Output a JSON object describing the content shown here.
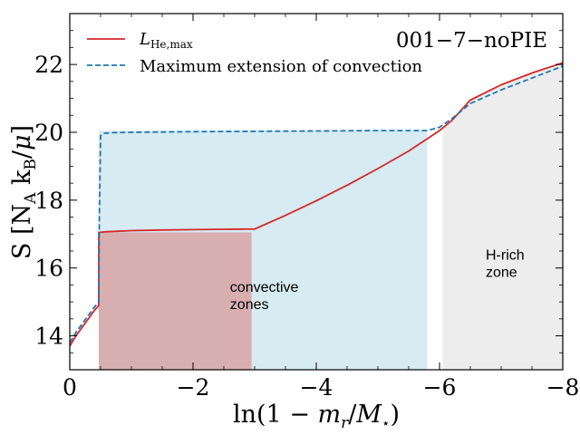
{
  "chart_data": {
    "type": "line",
    "title": "001−7−noPIE",
    "xlabel": "ln(1 − m_r/M_⋆)",
    "ylabel": "S [N_A k_B/μ]",
    "xlim": [
      0,
      -8
    ],
    "ylim": [
      13,
      23.5
    ],
    "xticks": [
      0,
      -2,
      -4,
      -6,
      -8
    ],
    "xtick_labels": [
      "0",
      "−2",
      "−4",
      "−6",
      "−8"
    ],
    "yticks": [
      14,
      16,
      18,
      20,
      22
    ],
    "ytick_labels": [
      "14",
      "16",
      "18",
      "20",
      "22"
    ],
    "legend_position": "top-left",
    "legend": [
      {
        "label_main": "L",
        "label_sub": "He,max",
        "style": "solid",
        "color": "#d62728"
      },
      {
        "label": "Maximum extension of convection",
        "style": "dashed",
        "color": "#1f77b4"
      }
    ],
    "series": [
      {
        "name": "L_He,max",
        "color": "#d62728",
        "style": "solid",
        "x": [
          0,
          -0.1,
          -0.2,
          -0.3,
          -0.4,
          -0.45,
          -0.47,
          -0.47,
          -0.6,
          -1.0,
          -1.5,
          -2.0,
          -2.5,
          -3.0,
          -3.5,
          -4.0,
          -4.5,
          -5.0,
          -5.5,
          -6.0,
          -6.2,
          -6.5,
          -7.0,
          -7.5,
          -8.0
        ],
        "y": [
          13.7,
          14.0,
          14.25,
          14.5,
          14.75,
          14.85,
          14.9,
          17.05,
          17.07,
          17.1,
          17.12,
          17.13,
          17.14,
          17.15,
          17.55,
          17.98,
          18.44,
          18.93,
          19.45,
          20.05,
          20.35,
          20.95,
          21.4,
          21.75,
          22.05
        ]
      },
      {
        "name": "Maximum extension of convection",
        "color": "#1f77b4",
        "style": "dashed",
        "x": [
          0,
          -0.1,
          -0.2,
          -0.3,
          -0.4,
          -0.45,
          -0.47,
          -0.48,
          -0.5,
          -0.55,
          -0.7,
          -1.0,
          -2.0,
          -3.0,
          -4.0,
          -5.0,
          -5.8,
          -6.0,
          -6.2,
          -6.5,
          -7.0,
          -7.5,
          -8.0
        ],
        "y": [
          13.8,
          14.1,
          14.35,
          14.6,
          14.85,
          14.95,
          15.0,
          17.5,
          19.9,
          19.97,
          19.99,
          20.0,
          20.02,
          20.03,
          20.04,
          20.05,
          20.05,
          20.15,
          20.4,
          20.85,
          21.25,
          21.6,
          21.95
        ]
      }
    ],
    "shaded_regions": [
      {
        "name": "convective-zone-max",
        "x_range": [
          -0.47,
          -5.8
        ],
        "y_range": [
          13,
          20.05
        ],
        "color": "#add8e6",
        "opacity": 0.5
      },
      {
        "name": "convective-zone-he",
        "x_range": [
          -0.47,
          -2.95
        ],
        "y_range": [
          13,
          17.05
        ],
        "color": "#d8a0a0",
        "opacity": 0.8
      },
      {
        "name": "h-rich-zone",
        "x_start": -6.05,
        "y_range": [
          13,
          "curve"
        ],
        "color": "#d3d3d3",
        "opacity": 0.4
      }
    ],
    "annotations": [
      {
        "lines": [
          "convective",
          "zones"
        ],
        "x": -2.6,
        "y": 15.3
      },
      {
        "lines": [
          "H-rich",
          "zone"
        ],
        "x": -6.75,
        "y": 16.25
      }
    ]
  }
}
